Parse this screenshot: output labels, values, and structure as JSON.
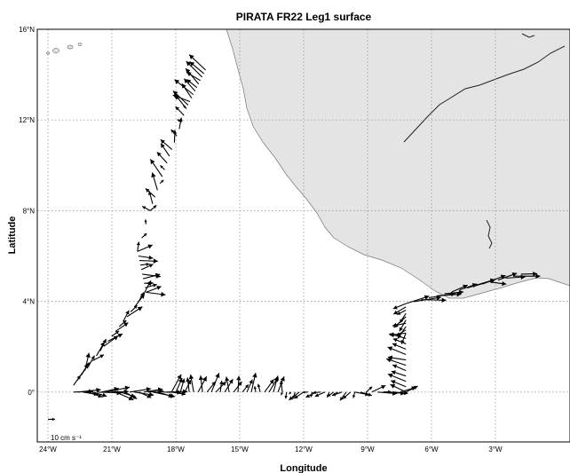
{
  "title": "PIRATA FR22 Leg1 surface",
  "xlabel": "Longitude",
  "ylabel": "Latitude",
  "xlim": [
    -24.5,
    0.5
  ],
  "ylim": [
    -2.2,
    16
  ],
  "xticks": [
    {
      "value": -24,
      "label": "24°W"
    },
    {
      "value": -21,
      "label": "21°W"
    },
    {
      "value": -18,
      "label": "18°W"
    },
    {
      "value": -15,
      "label": "15°W"
    },
    {
      "value": -12,
      "label": "12°W"
    },
    {
      "value": -9,
      "label": "9°W"
    },
    {
      "value": -6,
      "label": "6°W"
    },
    {
      "value": -3,
      "label": "3°W"
    }
  ],
  "yticks": [
    {
      "value": 0,
      "label": "0°"
    },
    {
      "value": 4,
      "label": "4°N"
    },
    {
      "value": 8,
      "label": "8°N"
    },
    {
      "value": 12,
      "label": "12°N"
    },
    {
      "value": 16,
      "label": "16°N"
    }
  ],
  "grid": true,
  "colors": {
    "land": "#e4e4e4",
    "coast": "#777777",
    "vectors": "#000000",
    "grid": "#8a8a8a"
  },
  "scale": {
    "label": "10 cm s⁻¹",
    "lon": -24,
    "lat": -1.2,
    "u": 10,
    "v": 0
  },
  "chart_data": {
    "type": "quiver",
    "units": "cm s-1",
    "legs": [
      {
        "lon0": -16.6,
        "lat0": 14.2,
        "lon1": -17.5,
        "lat1": 12.5,
        "n": 12,
        "um": -18,
        "vm": 14,
        "sd": 9,
        "seed": 3
      },
      {
        "lon0": -17.5,
        "lat0": 12.5,
        "lon1": -19.2,
        "lat1": 8.0,
        "n": 16,
        "um": -6,
        "vm": 14,
        "sd": 12,
        "seed": 7
      },
      {
        "lon0": -19.2,
        "lat0": 8.0,
        "lon1": -19.8,
        "lat1": 6.2,
        "n": 4,
        "um": 4,
        "vm": 10,
        "sd": 6,
        "seed": 11
      },
      {
        "lon0": -19.8,
        "lat0": 6.2,
        "lon1": -19.4,
        "lat1": 4.4,
        "n": 10,
        "um": 20,
        "vm": 3,
        "sd": 8,
        "seed": 13
      },
      {
        "lon0": -19.4,
        "lat0": 4.4,
        "lon1": -22.8,
        "lat1": 0.3,
        "n": 20,
        "um": 14,
        "vm": 16,
        "sd": 9,
        "seed": 17
      },
      {
        "lon0": -22.8,
        "lat0": 0.0,
        "lon1": -18.2,
        "lat1": 0.0,
        "n": 22,
        "um": 26,
        "vm": -2,
        "sd": 9,
        "seed": 19
      },
      {
        "lon0": -18.2,
        "lat0": 0.0,
        "lon1": -13.0,
        "lat1": 0.0,
        "n": 26,
        "um": 5,
        "vm": 18,
        "sd": 10,
        "seed": 23
      },
      {
        "lon0": -13.0,
        "lat0": 0.0,
        "lon1": -9.6,
        "lat1": 0.0,
        "n": 18,
        "um": -8,
        "vm": -6,
        "sd": 7,
        "seed": 29
      },
      {
        "lon0": -9.6,
        "lat0": 0.0,
        "lon1": -7.2,
        "lat1": 0.0,
        "n": 10,
        "um": 18,
        "vm": 2,
        "sd": 10,
        "seed": 31
      },
      {
        "lon0": -7.2,
        "lat0": 0.0,
        "lon1": -7.2,
        "lat1": 2.6,
        "n": 12,
        "um": -24,
        "vm": 4,
        "sd": 7,
        "seed": 37
      },
      {
        "lon0": -7.2,
        "lat0": 2.6,
        "lon1": -7.2,
        "lat1": 3.9,
        "n": 10,
        "um": -14,
        "vm": -10,
        "sd": 8,
        "seed": 41
      },
      {
        "lon0": -7.2,
        "lat0": 3.9,
        "lon1": -1.8,
        "lat1": 5.2,
        "n": 16,
        "um": 30,
        "vm": 6,
        "sd": 9,
        "seed": 43
      }
    ]
  }
}
